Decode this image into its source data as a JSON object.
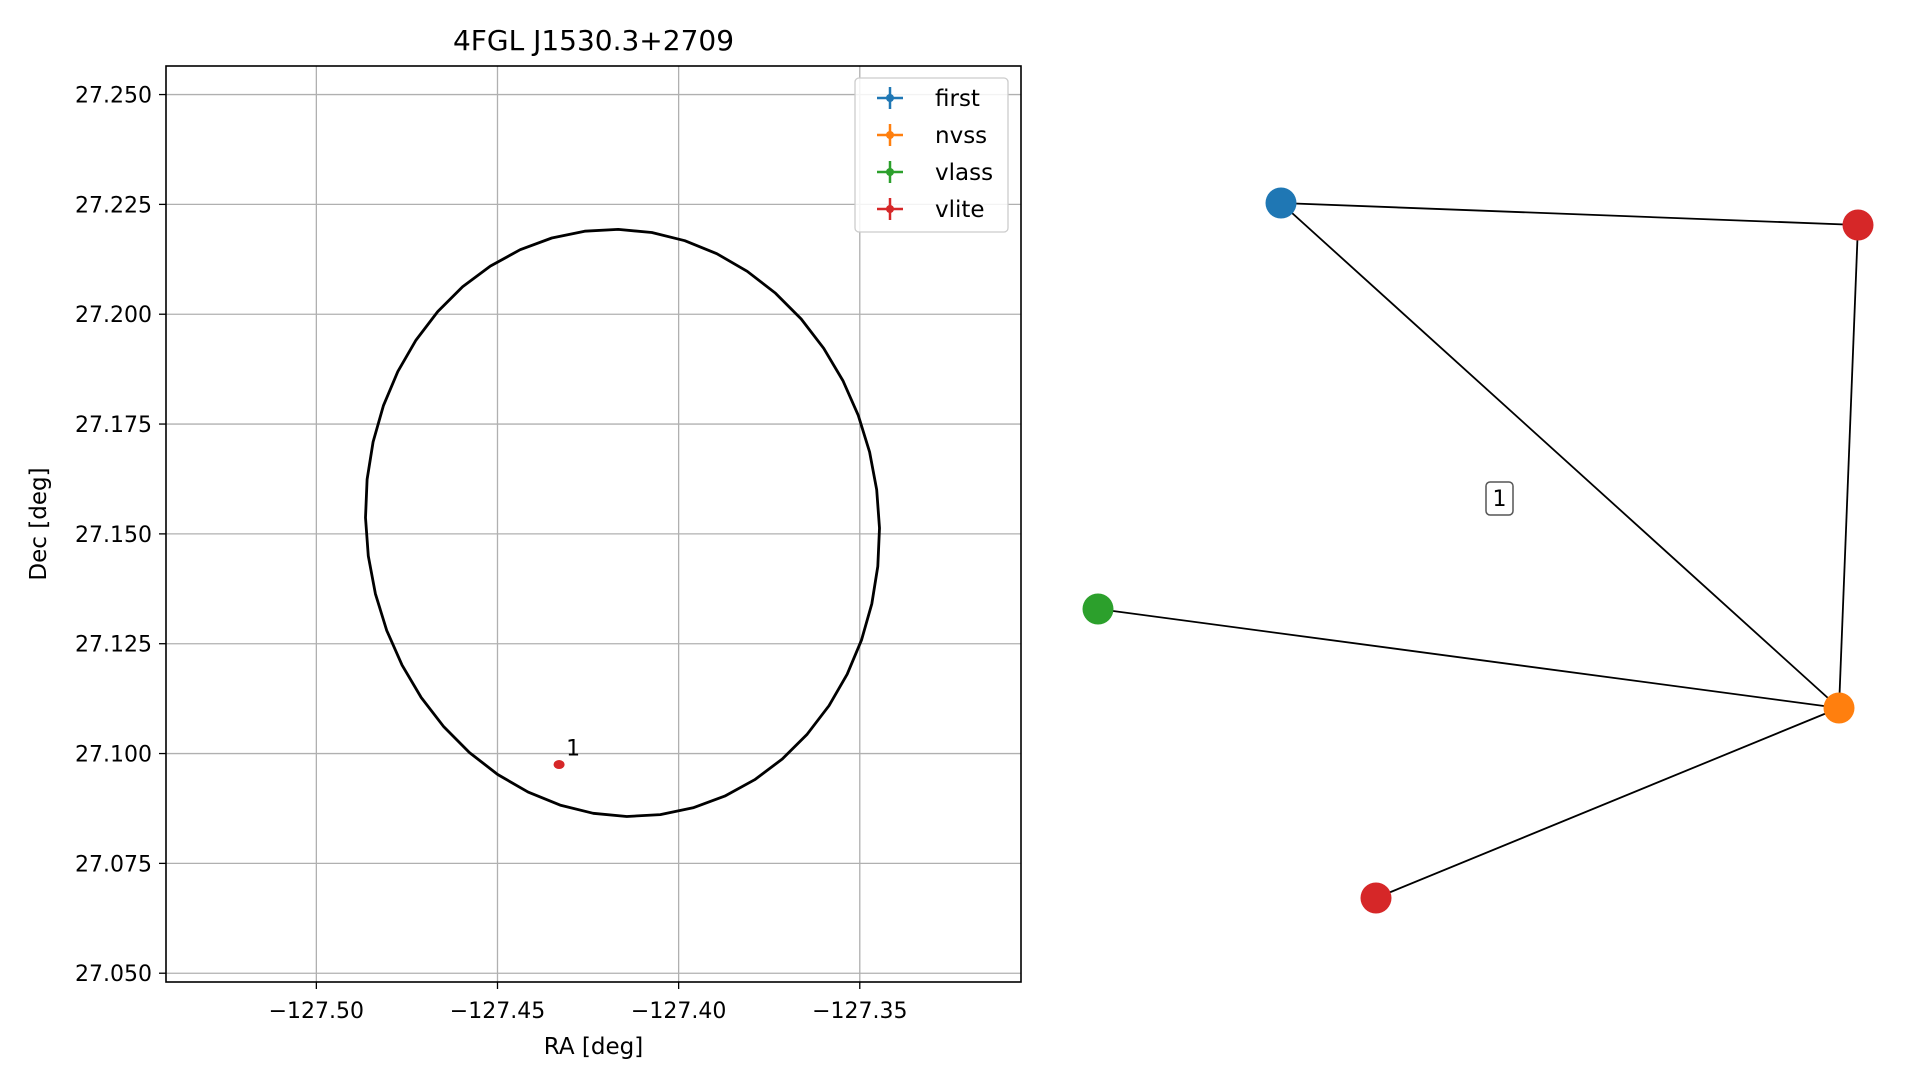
{
  "chart_data": [
    {
      "type": "scatter",
      "title": "4FGL J1530.3+2709",
      "xlabel": "RA [deg]",
      "ylabel": "Dec [deg]",
      "xlim": [
        -127.5415,
        -127.3055
      ],
      "ylim": [
        27.048,
        27.2565
      ],
      "xticks": [
        -127.5,
        -127.45,
        -127.4,
        -127.35
      ],
      "xtick_labels": [
        "−127.50",
        "−127.45",
        "−127.40",
        "−127.35"
      ],
      "yticks": [
        27.05,
        27.075,
        27.1,
        27.125,
        27.15,
        27.175,
        27.2,
        27.225,
        27.25
      ],
      "ytick_labels": [
        "27.050",
        "27.075",
        "27.100",
        "27.125",
        "27.150",
        "27.175",
        "27.200",
        "27.225",
        "27.250"
      ],
      "grid": true,
      "legend_position": "top-right",
      "legend": [
        {
          "label": "first",
          "color": "#1f77b4"
        },
        {
          "label": "nvss",
          "color": "#ff7f0e"
        },
        {
          "label": "vlass",
          "color": "#2ca02c"
        },
        {
          "label": "vlite",
          "color": "#d62728"
        }
      ],
      "ellipse": {
        "center": [
          -127.4155,
          27.1525
        ],
        "width_ra": 0.1425,
        "height_dec": 0.133,
        "tilt_deg": -15,
        "color": "#000000"
      },
      "points": [
        {
          "catalog": "vlite",
          "ra": -127.433,
          "dec": 27.0975,
          "label": "1",
          "color": "#d62728"
        }
      ]
    },
    {
      "type": "network",
      "nodes": [
        {
          "id": "first",
          "color": "#1f77b4"
        },
        {
          "id": "vlite_a",
          "color": "#d62728"
        },
        {
          "id": "vlass",
          "color": "#2ca02c"
        },
        {
          "id": "nvss",
          "color": "#ff7f0e"
        },
        {
          "id": "vlite_b",
          "color": "#d62728"
        }
      ],
      "edges": [
        [
          "first",
          "vlite_a"
        ],
        [
          "first",
          "nvss"
        ],
        [
          "vlite_a",
          "nvss"
        ],
        [
          "vlass",
          "nvss"
        ],
        [
          "vlite_b",
          "nvss"
        ]
      ],
      "annotation": "1"
    }
  ]
}
